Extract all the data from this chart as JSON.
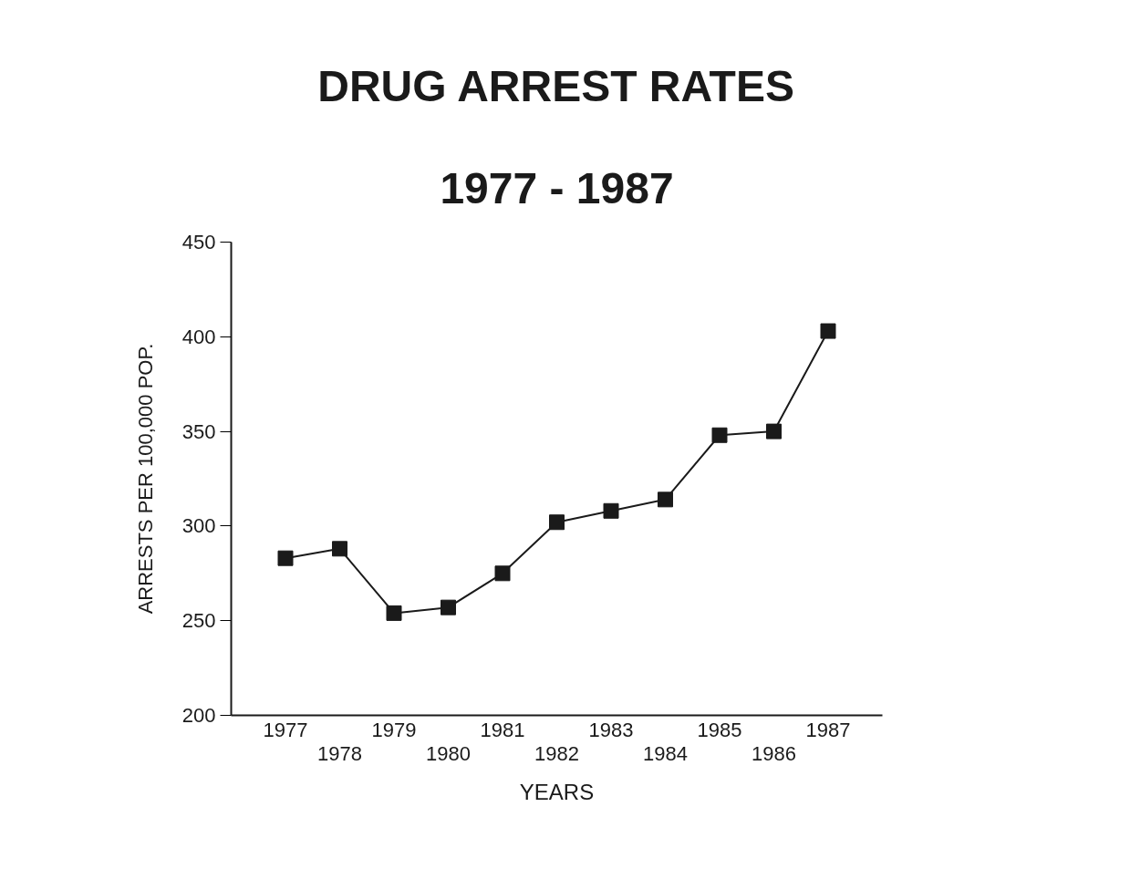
{
  "chart_data": {
    "type": "line",
    "title": "DRUG ARREST RATES",
    "subtitle": "1977 - 1987",
    "xlabel": "YEARS",
    "ylabel": "ARRESTS PER 100,000 POP.",
    "categories": [
      "1977",
      "1978",
      "1979",
      "1980",
      "1981",
      "1982",
      "1983",
      "1984",
      "1985",
      "1986",
      "1987"
    ],
    "series": [
      {
        "color": "#1a1a1a",
        "values": [
          283,
          288,
          254,
          257,
          275,
          302,
          308,
          314,
          348,
          350,
          403
        ]
      }
    ],
    "ylim": [
      200,
      450
    ],
    "yticks": [
      200,
      250,
      300,
      350,
      400,
      450
    ],
    "grid": false,
    "marker": "square",
    "line_style": "solid"
  }
}
